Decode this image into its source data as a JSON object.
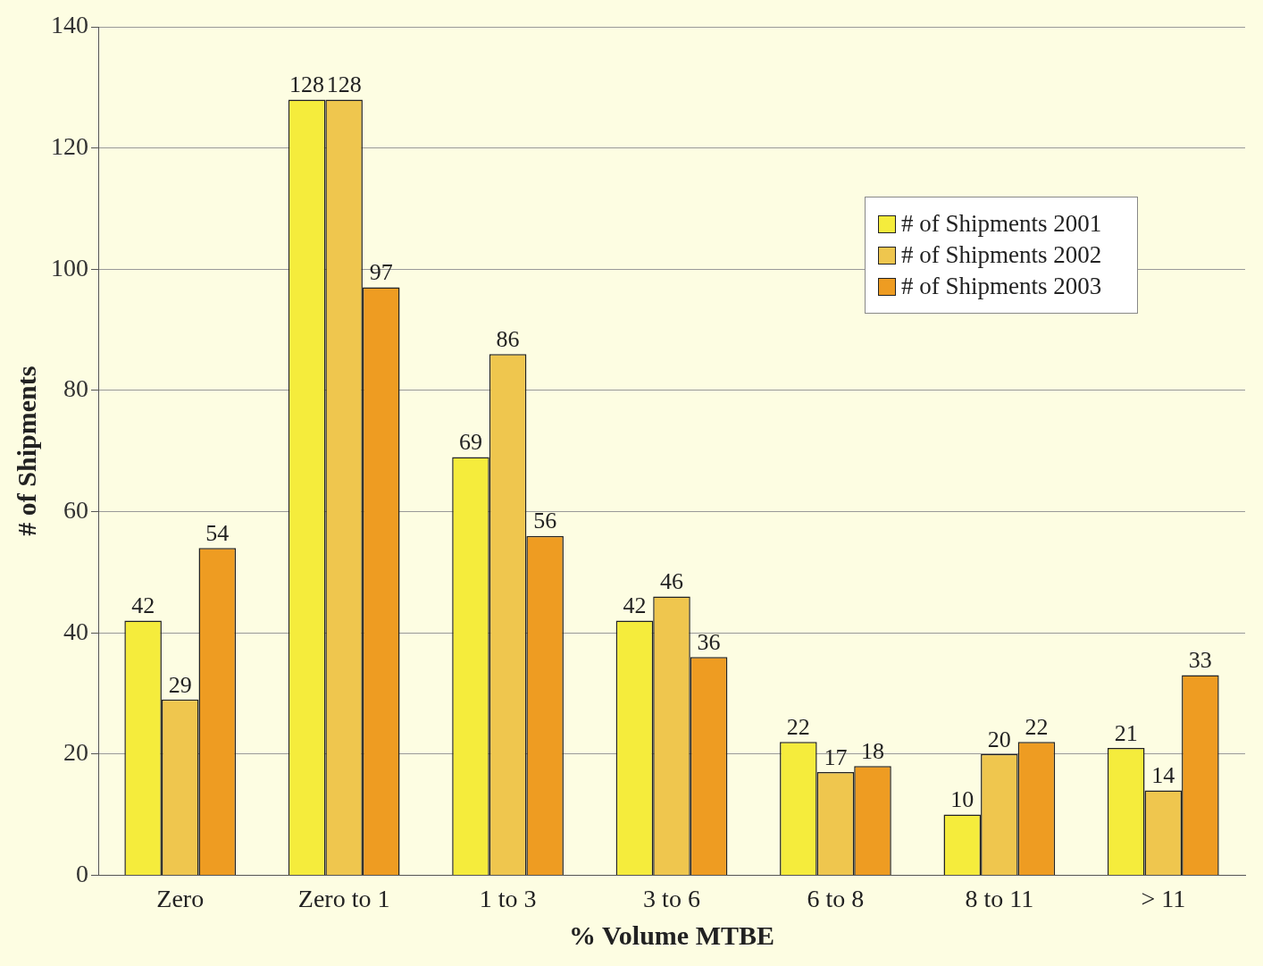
{
  "chart_data": {
    "type": "bar",
    "xlabel": "% Volume MTBE",
    "ylabel": "# of Shipments",
    "categories": [
      "Zero",
      "Zero to 1",
      "1 to 3",
      "3 to 6",
      "6 to 8",
      "8 to 11",
      "> 11"
    ],
    "series": [
      {
        "name": "# of Shipments 2001",
        "color": "#f5ec3c",
        "values": [
          42,
          128,
          69,
          42,
          22,
          10,
          21
        ]
      },
      {
        "name": "# of Shipments 2002",
        "color": "#efc64e",
        "values": [
          29,
          128,
          86,
          46,
          17,
          20,
          14
        ]
      },
      {
        "name": "# of Shipments 2003",
        "color": "#ee9c22",
        "values": [
          54,
          97,
          56,
          36,
          18,
          22,
          33
        ]
      }
    ],
    "ylim": [
      0,
      140
    ],
    "yticks": [
      0,
      20,
      40,
      60,
      80,
      100,
      120,
      140
    ],
    "grid": "y",
    "legend": "top right",
    "data_labels": true
  }
}
